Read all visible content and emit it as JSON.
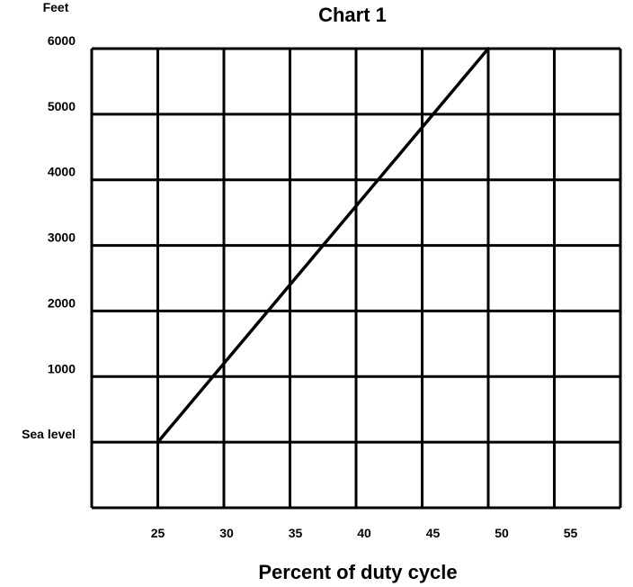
{
  "chart_data": {
    "type": "line",
    "title": "Chart 1",
    "xlabel": "Percent of duty cycle",
    "ylabel": "Feet",
    "x_ticks": [
      25,
      30,
      35,
      40,
      45,
      50,
      55
    ],
    "y_ticks": [
      {
        "value": 0,
        "label": "Sea level"
      },
      {
        "value": 1000,
        "label": "1000"
      },
      {
        "value": 2000,
        "label": "2000"
      },
      {
        "value": 3000,
        "label": "3000"
      },
      {
        "value": 4000,
        "label": "4000"
      },
      {
        "value": 5000,
        "label": "5000"
      },
      {
        "value": 6000,
        "label": "6000"
      }
    ],
    "xlim": [
      20,
      60
    ],
    "ylim": [
      -1000,
      6000
    ],
    "grid": true,
    "series": [
      {
        "x": [
          25,
          50
        ],
        "y": [
          0,
          6000
        ]
      }
    ],
    "line_color": "#000000"
  }
}
